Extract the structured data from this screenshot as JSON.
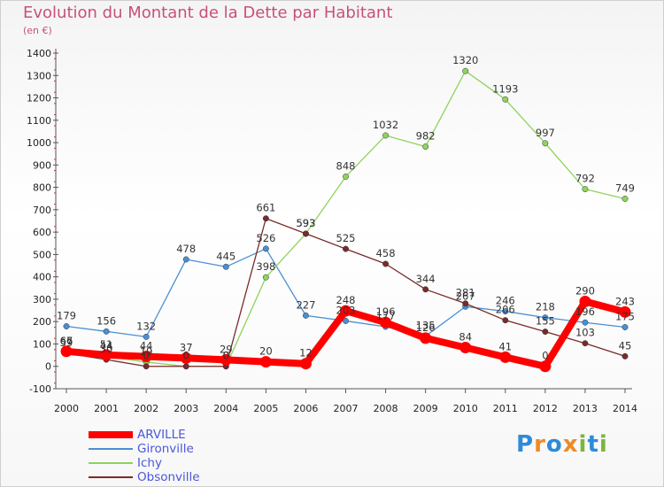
{
  "title": "Evolution du Montant de la Dette par Habitant",
  "subtitle": "(en €)",
  "logo": {
    "text": "Proxiti",
    "colors": [
      "#2e8bd8",
      "#f08a24",
      "#2e8bd8",
      "#f08a24",
      "#7ab63a",
      "#2e8bd8",
      "#7ab63a"
    ]
  },
  "chart_data": {
    "type": "line",
    "x": [
      2000,
      2001,
      2002,
      2003,
      2004,
      2005,
      2006,
      2007,
      2008,
      2009,
      2010,
      2011,
      2012,
      2013,
      2014
    ],
    "ylim": [
      -100,
      1400
    ],
    "yticks": [
      -100,
      0,
      100,
      200,
      300,
      400,
      500,
      600,
      700,
      800,
      900,
      1000,
      1100,
      1200,
      1300,
      1400
    ],
    "grid": false,
    "legend_position": "bottom-left",
    "series": [
      {
        "name": "Gironville",
        "color": "#4a8fd4",
        "width": 1.3,
        "values": [
          179,
          156,
          132,
          478,
          445,
          526,
          227,
          203,
          177,
          135,
          267,
          246,
          218,
          196,
          175
        ],
        "labels": [
          "179",
          "156",
          "132",
          "478",
          "445",
          "526",
          "227",
          "203",
          "177",
          "135",
          "267",
          "246",
          "218",
          "196",
          "175"
        ]
      },
      {
        "name": "Ichy",
        "color": "#8fd35c",
        "width": 1.3,
        "values": [
          66,
          44,
          19,
          0,
          0,
          398,
          593,
          848,
          1032,
          982,
          1320,
          1193,
          997,
          792,
          749
        ],
        "labels": [
          "66",
          "44",
          "19",
          "0",
          "0",
          "398",
          "593",
          "848",
          "1032",
          "982",
          "1320",
          "1193",
          "997",
          "792",
          "749"
        ]
      },
      {
        "name": "Obsonville",
        "color": "#7a2a2a",
        "width": 1.3,
        "values": [
          59,
          30,
          0,
          0,
          0,
          661,
          593,
          525,
          458,
          344,
          281,
          206,
          155,
          103,
          45
        ],
        "labels": [
          "59",
          "30",
          "0",
          "0",
          "0",
          "661",
          "593",
          "525",
          "458",
          "344",
          "281",
          "206",
          "155",
          "103",
          "45"
        ]
      },
      {
        "name": "ARVILLE",
        "color": "#ff0000",
        "width": 8,
        "values": [
          67,
          51,
          44,
          37,
          29,
          20,
          12,
          248,
          196,
          126,
          84,
          41,
          0,
          290,
          243
        ],
        "labels": [
          "67",
          "51",
          "44",
          "37",
          "29",
          "20",
          "12",
          "248",
          "196",
          "126",
          "84",
          "41",
          "0",
          "290",
          "243"
        ]
      }
    ],
    "legend_order": [
      "ARVILLE",
      "Gironville",
      "Ichy",
      "Obsonville"
    ]
  }
}
